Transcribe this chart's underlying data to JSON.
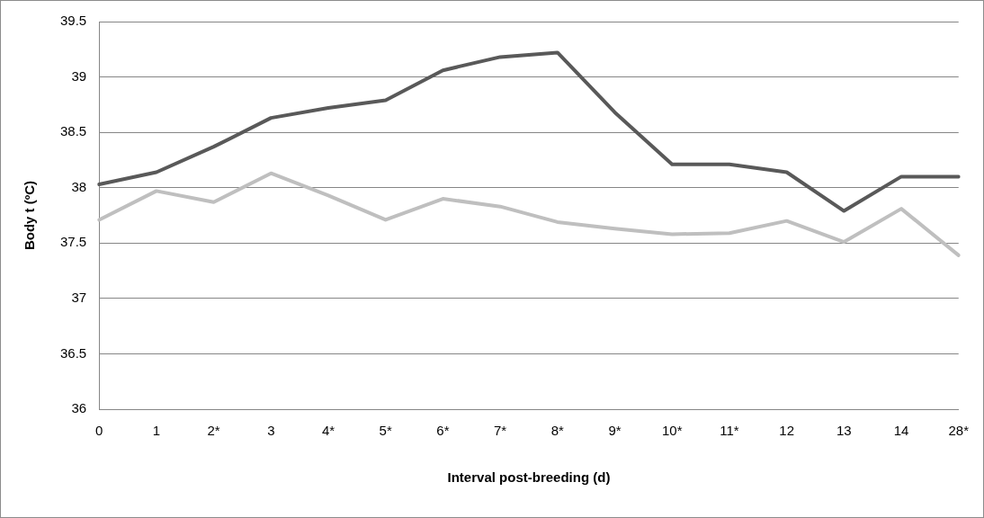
{
  "chart_data": {
    "type": "line",
    "xlabel": "Interval post-breeding (d)",
    "ylabel": "Body t (ºC)",
    "categories": [
      "0",
      "1",
      "2*",
      "3",
      "4*",
      "5*",
      "6*",
      "7*",
      "8*",
      "9*",
      "10*",
      "11*",
      "12",
      "13",
      "14",
      "28*"
    ],
    "series": [
      {
        "color": "#595959",
        "values": [
          38.03,
          38.14,
          38.37,
          38.63,
          38.72,
          38.79,
          39.06,
          39.18,
          39.22,
          38.68,
          38.21,
          38.21,
          38.14,
          37.79,
          38.1,
          38.1
        ]
      },
      {
        "color": "#bfbfbf",
        "values": [
          37.71,
          37.97,
          37.87,
          38.13,
          37.93,
          37.71,
          37.9,
          37.83,
          37.69,
          37.63,
          37.58,
          37.59,
          37.7,
          37.51,
          37.81,
          37.39
        ]
      }
    ],
    "ylim": [
      36,
      39.5
    ],
    "yticks": [
      36,
      36.5,
      37,
      37.5,
      38,
      38.5,
      39,
      39.5
    ],
    "grid": "y",
    "legend": false,
    "marker": "none",
    "line_style": "solid"
  }
}
